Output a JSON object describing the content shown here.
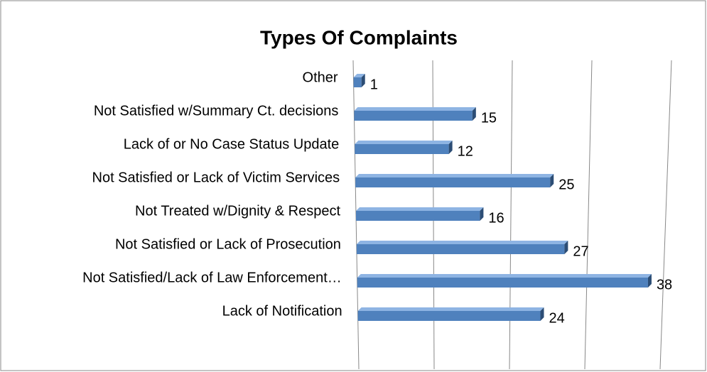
{
  "chart_data": {
    "type": "bar3d_horizontal",
    "title": "Types Of Complaints",
    "categories": [
      "Other",
      "Not Satisfied w/Summary Ct. decisions",
      "Lack of or No Case Status Update",
      "Not Satisfied or Lack of Victim Services",
      "Not Treated w/Dignity & Respect",
      "Not Satisfied or Lack of Prosecution",
      "Not Satisfied/Lack of Law Enforcement…",
      "Lack of Notification"
    ],
    "values": [
      1,
      15,
      12,
      25,
      16,
      27,
      38,
      24
    ],
    "color": "#4f81bd",
    "xlim": [
      0,
      40
    ],
    "xticks": [
      0,
      10,
      20,
      30,
      40
    ],
    "grid": true
  }
}
